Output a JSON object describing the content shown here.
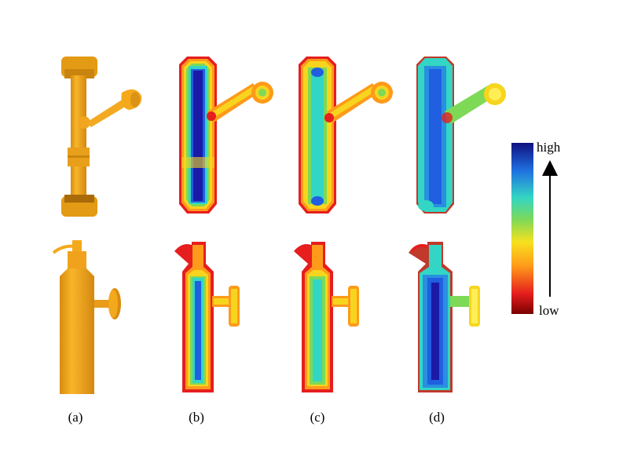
{
  "figure": {
    "panels": [
      {
        "id": "a",
        "label": "(a)",
        "kind": "model"
      },
      {
        "id": "b",
        "label": "(b)",
        "kind": "heatmap"
      },
      {
        "id": "c",
        "label": "(c)",
        "kind": "heatmap"
      },
      {
        "id": "d",
        "label": "(d)",
        "kind": "heatmap"
      }
    ],
    "colorbar": {
      "high_label": "high",
      "low_label": "low"
    },
    "colors": {
      "model": "#f4a81c",
      "model_dark": "#c98410",
      "edge": "#b30000",
      "red": "#e61e1e",
      "orange": "#ff9a1a",
      "yellow": "#f7d51e",
      "green": "#7ed957",
      "cyan": "#33d6c4",
      "blue": "#1f5fe0",
      "navy": "#1a1aa6"
    }
  }
}
